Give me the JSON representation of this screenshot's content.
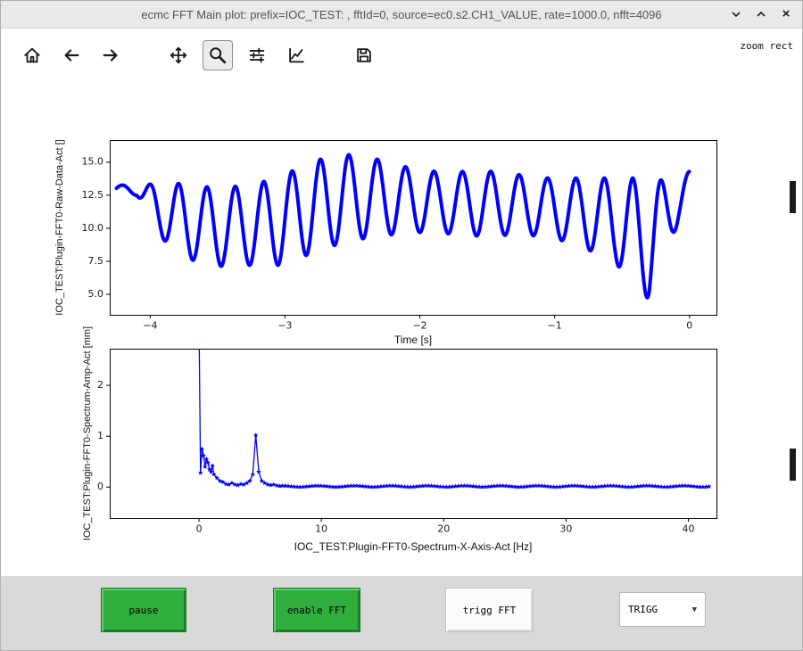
{
  "window": {
    "title": "ecmc FFT Main plot: prefix=IOC_TEST: , fftId=0, source=ec0.s2.CH1_VALUE, rate=1000.0, nfft=4096",
    "titlebar_icons": [
      "chevron-down-icon",
      "chevron-up-icon",
      "close-icon"
    ]
  },
  "toolbar": {
    "mode_text": "zoom rect",
    "icons": [
      "home-icon",
      "back-icon",
      "forward-icon",
      "pan-icon",
      "zoom-icon",
      "subplots-icon",
      "customize-icon",
      "save-icon"
    ],
    "active_tool": "zoom"
  },
  "controls": {
    "pause_label": "pause",
    "enable_fft_label": "enable FFT",
    "trigg_fft_label": "trigg FFT",
    "trigg_select_value": "TRIGG"
  },
  "colors": {
    "series_blue": "#0000ff",
    "button_green": "#2fae3e",
    "titlebar_bg": "#e9e9e9",
    "bottom_bar_bg": "#d9d9d9",
    "axes_frame": "#000000"
  },
  "chart_data": [
    {
      "type": "line",
      "title": "",
      "xlabel": "Time [s]",
      "ylabel": "IOC_TEST:Plugin-FFT0-Raw-Data-Act []",
      "xlim": [
        -4.3,
        0.2
      ],
      "ylim": [
        3.45,
        16.68
      ],
      "xticks": [
        -4,
        -3,
        -2,
        -1,
        0
      ],
      "xticklabels": [
        "−4",
        "−3",
        "−2",
        "−1",
        "0"
      ],
      "yticks": [
        5.0,
        7.5,
        10.0,
        12.5,
        15.0
      ],
      "yticklabels": [
        "5.0",
        "7.5",
        "10.0",
        "12.5",
        "15.0"
      ],
      "grid": false,
      "legend": null,
      "signal": {
        "description": "amplitude-modulated sine wave, approx 4.75 Hz carrier, mean level ~11.5",
        "carrier_hz": 4.75,
        "t_start": -4.25,
        "t_end": 0.0,
        "dt": 0.004,
        "envelope_keyframes_t_center_amp": [
          [
            -4.3,
            12.9,
            0.25
          ],
          [
            -4.1,
            12.95,
            0.45
          ],
          [
            -3.95,
            11.5,
            1.8
          ],
          [
            -3.8,
            10.7,
            2.7
          ],
          [
            -3.55,
            10.1,
            3.0
          ],
          [
            -3.3,
            10.2,
            3.0
          ],
          [
            -3.05,
            10.5,
            3.3
          ],
          [
            -2.8,
            11.6,
            3.5
          ],
          [
            -2.55,
            12.3,
            3.3
          ],
          [
            -2.3,
            12.3,
            2.9
          ],
          [
            -2.05,
            12.1,
            2.4
          ],
          [
            -1.8,
            11.9,
            2.3
          ],
          [
            -1.55,
            11.9,
            2.5
          ],
          [
            -1.3,
            11.8,
            2.3
          ],
          [
            -1.05,
            11.6,
            2.2
          ],
          [
            -0.8,
            11.2,
            2.6
          ],
          [
            -0.55,
            10.6,
            3.2
          ],
          [
            -0.42,
            9.8,
            4.0
          ],
          [
            -0.3,
            9.2,
            4.6
          ],
          [
            -0.18,
            10.8,
            2.8
          ],
          [
            -0.08,
            12.3,
            1.8
          ],
          [
            0.0,
            13.0,
            1.3
          ]
        ]
      }
    },
    {
      "type": "line",
      "title": "",
      "xlabel": "IOC_TEST:Plugin-FFT0-Spectrum-X-Axis-Act [Hz]",
      "ylabel": "IOC_TEST:Plugin-FFT0-Spectrum-Amp-Act [mm]",
      "xlim": [
        -7.3,
        42.3
      ],
      "ylim": [
        -0.61,
        2.72
      ],
      "xticks": [
        0,
        10,
        20,
        30,
        40
      ],
      "xticklabels": [
        "0",
        "10",
        "20",
        "30",
        "40"
      ],
      "yticks": [
        0,
        1,
        2
      ],
      "yticklabels": [
        "0",
        "1",
        "2"
      ],
      "grid": false,
      "legend": null,
      "marker": "star",
      "points": [
        [
          0,
          3.2
        ],
        [
          0.12,
          0.28
        ],
        [
          0.24,
          0.75
        ],
        [
          0.37,
          0.62
        ],
        [
          0.49,
          0.4
        ],
        [
          0.61,
          0.55
        ],
        [
          0.73,
          0.48
        ],
        [
          0.85,
          0.35
        ],
        [
          0.98,
          0.3
        ],
        [
          1.1,
          0.42
        ],
        [
          1.22,
          0.25
        ],
        [
          1.46,
          0.18
        ],
        [
          1.71,
          0.12
        ],
        [
          1.95,
          0.1
        ],
        [
          2.2,
          0.06
        ],
        [
          2.44,
          0.05
        ],
        [
          2.69,
          0.08
        ],
        [
          2.93,
          0.05
        ],
        [
          3.17,
          0.04
        ],
        [
          3.42,
          0.06
        ],
        [
          3.66,
          0.05
        ],
        [
          3.91,
          0.08
        ],
        [
          4.15,
          0.12
        ],
        [
          4.39,
          0.25
        ],
        [
          4.64,
          1.02
        ],
        [
          4.88,
          0.3
        ],
        [
          5.13,
          0.12
        ],
        [
          5.37,
          0.08
        ],
        [
          5.62,
          0.05
        ],
        [
          5.86,
          0.04
        ],
        [
          6.1,
          0.05
        ],
        [
          6.35,
          0.03
        ],
        [
          6.59,
          0.02
        ]
      ],
      "noise_floor": {
        "from": 6.8,
        "to": 41.9,
        "step": 0.244,
        "value": 0.015
      }
    }
  ]
}
